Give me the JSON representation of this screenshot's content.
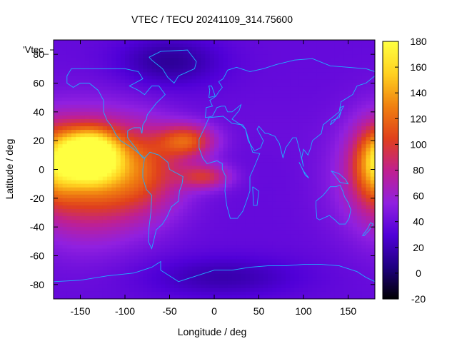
{
  "chart_data": {
    "type": "heatmap",
    "title": "VTEC / TECU 20241109_314.75600",
    "xlabel": "Longitude / deg",
    "ylabel": "Latitude / deg",
    "key_label": "'Vtec_",
    "xlim": [
      -180,
      180
    ],
    "ylim": [
      -90,
      90
    ],
    "x_ticks": [
      -150,
      -100,
      -50,
      0,
      50,
      100,
      150
    ],
    "y_ticks": [
      -80,
      -60,
      -40,
      -20,
      0,
      20,
      40,
      60,
      80
    ],
    "colorbar": {
      "range": [
        -20,
        180
      ],
      "ticks": [
        -20,
        0,
        20,
        40,
        60,
        80,
        100,
        120,
        140,
        160,
        180
      ],
      "palette": [
        "#000000",
        "#1f0080",
        "#5000d8",
        "#9020e0",
        "#c02090",
        "#e0401c",
        "#f08010",
        "#ffd020",
        "#ffff40"
      ]
    },
    "grid": false,
    "background_level": 38,
    "features": [
      {
        "lon": -140,
        "lat": 10,
        "value": 170,
        "sx": 22,
        "sy": 12
      },
      {
        "lon": -145,
        "lat": -5,
        "value": 115,
        "sx": 45,
        "sy": 28
      },
      {
        "lon": -80,
        "lat": 0,
        "value": 95,
        "sx": 35,
        "sy": 22
      },
      {
        "lon": -30,
        "lat": 20,
        "value": 105,
        "sx": 22,
        "sy": 8
      },
      {
        "lon": -10,
        "lat": -5,
        "value": 90,
        "sx": 20,
        "sy": 6
      },
      {
        "lon": 180,
        "lat": 5,
        "value": 100,
        "sx": 18,
        "sy": 18
      },
      {
        "lon": -50,
        "lat": 75,
        "value": 12,
        "sx": 40,
        "sy": 12
      },
      {
        "lon": 10,
        "lat": -75,
        "value": 18,
        "sx": 60,
        "sy": 10
      },
      {
        "lon": 60,
        "lat": 30,
        "value": 40,
        "sx": 40,
        "sy": 15
      }
    ]
  }
}
